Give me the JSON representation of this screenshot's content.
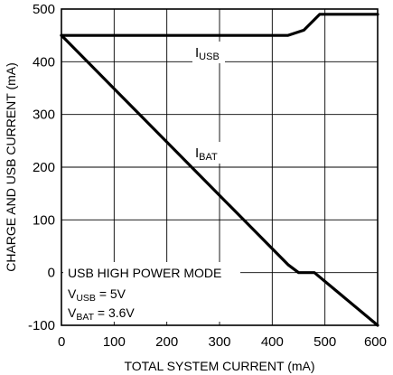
{
  "chart_data": {
    "type": "line",
    "xlabel": "TOTAL SYSTEM CURRENT (mA)",
    "ylabel": "CHARGE AND USB CURRENT (mA)",
    "xlim": [
      0,
      600
    ],
    "ylim": [
      -100,
      500
    ],
    "xticks": [
      0,
      100,
      200,
      300,
      400,
      500,
      600
    ],
    "yticks": [
      -100,
      0,
      100,
      200,
      300,
      400,
      500
    ],
    "grid": true,
    "series": [
      {
        "name_main": "I",
        "name_sub": "USB",
        "x": [
          0,
          430,
          460,
          490,
          600
        ],
        "y": [
          450,
          450,
          460,
          490,
          490
        ]
      },
      {
        "name_main": "I",
        "name_sub": "BAT",
        "x": [
          0,
          430,
          450,
          480,
          600
        ],
        "y": [
          450,
          15,
          0,
          0,
          -100
        ]
      }
    ],
    "annotations": [
      {
        "main": "USB HIGH POWER MODE",
        "sub": "",
        "tail": ""
      },
      {
        "main": "V",
        "sub": "USB",
        "tail": " = 5V"
      },
      {
        "main": "V",
        "sub": "BAT",
        "tail": " = 3.6V"
      }
    ]
  }
}
